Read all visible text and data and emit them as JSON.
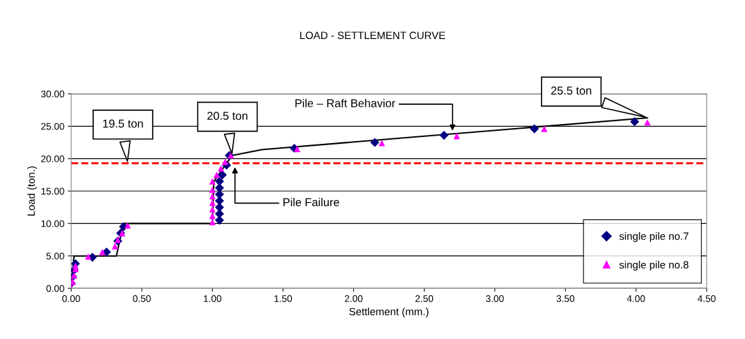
{
  "chart_data": {
    "type": "scatter",
    "title": "LOAD - SETTLEMENT CURVE",
    "xlabel": "Settlement (mm.)",
    "ylabel": "Load (ton.)",
    "series": [
      {
        "name": "single pile no.7",
        "color": "#000080",
        "marker": "diamond",
        "x": [
          0.0,
          0.01,
          0.02,
          0.03,
          0.15,
          0.25,
          0.33,
          0.35,
          0.37,
          1.05,
          1.05,
          1.05,
          1.05,
          1.05,
          1.05,
          1.05,
          1.07,
          1.1,
          1.12,
          1.58,
          2.15,
          2.64,
          3.28,
          3.99
        ],
        "values": [
          0.8,
          1.8,
          2.8,
          3.8,
          4.8,
          5.6,
          7.3,
          8.5,
          9.5,
          10.5,
          11.5,
          12.5,
          13.5,
          14.5,
          15.5,
          16.5,
          17.5,
          19.0,
          20.5,
          21.6,
          22.5,
          23.6,
          24.6,
          25.7
        ]
      },
      {
        "name": "single pile no.8",
        "color": "#ff00ff",
        "marker": "triangle",
        "x": [
          0.0,
          0.01,
          0.02,
          0.03,
          0.03,
          0.12,
          0.22,
          0.31,
          0.33,
          0.36,
          0.4,
          1.0,
          1.0,
          1.0,
          1.0,
          1.0,
          1.0,
          1.0,
          1.03,
          1.06,
          1.09,
          1.13,
          1.6,
          2.2,
          2.73,
          3.35,
          4.08
        ],
        "values": [
          0.0,
          1.0,
          2.0,
          3.0,
          3.5,
          4.9,
          5.6,
          6.5,
          7.5,
          8.5,
          9.7,
          10.2,
          11.2,
          12.2,
          13.2,
          14.2,
          15.2,
          16.5,
          17.5,
          18.5,
          19.5,
          20.5,
          21.5,
          22.4,
          23.5,
          24.6,
          25.6
        ]
      },
      {
        "type": "line",
        "color": "#000000",
        "marker": "none",
        "x": [
          0.0,
          0.02,
          0.32,
          0.37,
          1.0,
          1.01,
          1.14,
          1.35,
          4.08
        ],
        "values": [
          0.0,
          5.0,
          5.0,
          10.0,
          10.0,
          16.5,
          20.5,
          21.4,
          26.3
        ]
      }
    ],
    "ref_lines": [
      {
        "axis": "y",
        "value": 19.3,
        "color": "#ff0000",
        "line_style": "dashed"
      }
    ],
    "annotations": [
      {
        "text": "19.5 ton",
        "x": 0.4,
        "y": 19.3
      },
      {
        "text": "20.5 ton",
        "x": 1.14,
        "y": 20.5
      },
      {
        "text": "25.5 ton",
        "x": 4.08,
        "y": 26.3
      },
      {
        "text": "Pile – Raft Behavior",
        "x": 2.7,
        "y": 24.0
      },
      {
        "text": "Pile Failure",
        "x": 1.16,
        "y": 19.0
      }
    ],
    "xlim": [
      0,
      4.5
    ],
    "ylim": [
      0,
      30
    ],
    "xticks": [
      {
        "value": 0,
        "label": "0.00"
      },
      {
        "value": 0.5,
        "label": "0.50"
      },
      {
        "value": 1,
        "label": "1.00"
      },
      {
        "value": 1.5,
        "label": "1.50"
      },
      {
        "value": 2,
        "label": "2.00"
      },
      {
        "value": 2.5,
        "label": "2.50"
      },
      {
        "value": 3,
        "label": "3.00"
      },
      {
        "value": 3.5,
        "label": "3.50"
      },
      {
        "value": 4,
        "label": "4.00"
      },
      {
        "value": 4.5,
        "label": "4.50"
      }
    ],
    "yticks": [
      {
        "value": 0,
        "label": "0.00"
      },
      {
        "value": 5,
        "label": "5.00"
      },
      {
        "value": 10,
        "label": "10.00"
      },
      {
        "value": 15,
        "label": "15.00"
      },
      {
        "value": 20,
        "label": "20.00"
      },
      {
        "value": 25,
        "label": "25.00"
      },
      {
        "value": 30,
        "label": "30.00"
      }
    ],
    "grid": "y",
    "legend": "bottom right"
  }
}
